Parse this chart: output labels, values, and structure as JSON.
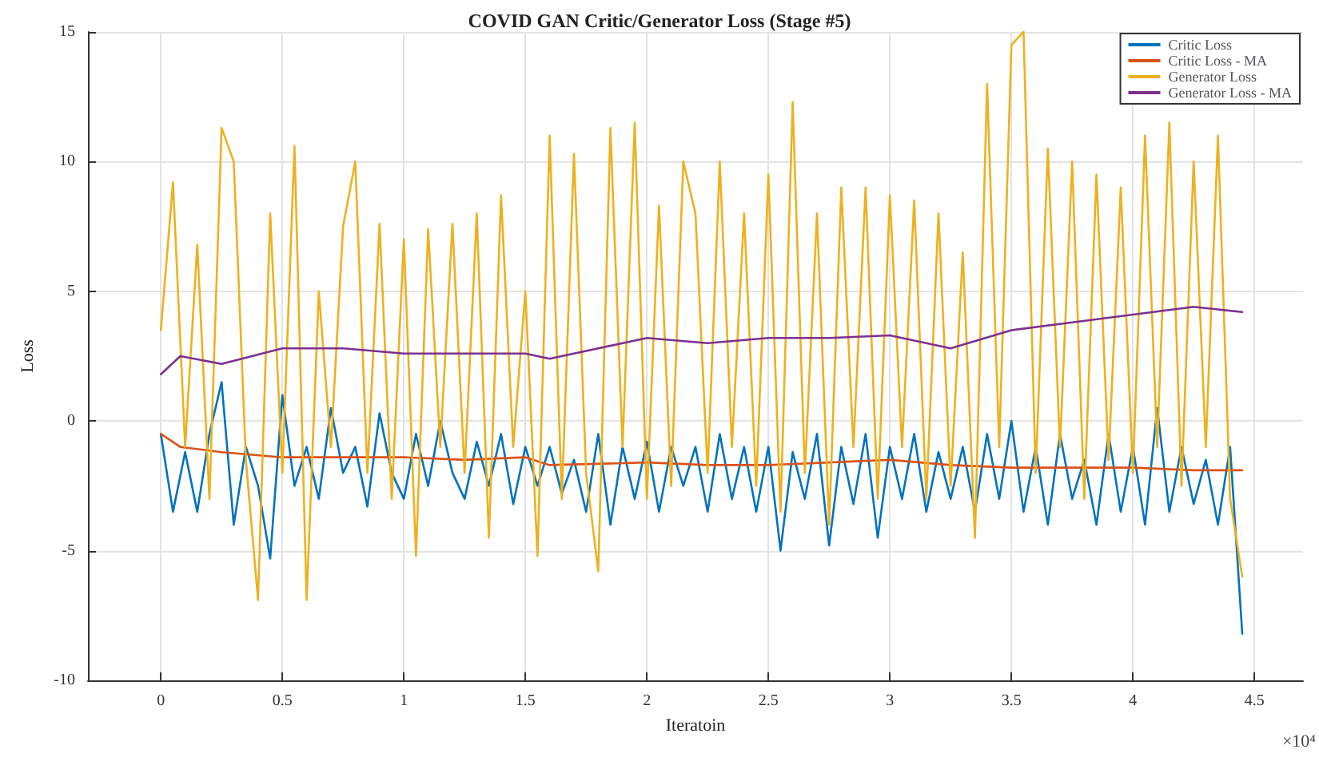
{
  "chart_data": {
    "type": "line",
    "title": "COVID GAN Critic/Generator Loss (Stage #5)",
    "xlabel": "Iteratoin",
    "ylabel": "Loss",
    "annotations": [
      "×10⁴"
    ],
    "x": [
      0,
      0.05,
      0.1,
      0.15,
      0.2,
      0.25,
      0.3,
      0.35,
      0.4,
      0.45,
      0.5,
      0.55,
      0.6,
      0.65,
      0.7,
      0.75,
      0.8,
      0.85,
      0.9,
      0.95,
      1,
      1.05,
      1.1,
      1.15,
      1.2,
      1.25,
      1.3,
      1.35,
      1.4,
      1.45,
      1.5,
      1.55,
      1.6,
      1.65,
      1.7,
      1.75,
      1.8,
      1.85,
      1.9,
      1.95,
      2,
      2.05,
      2.1,
      2.15,
      2.2,
      2.25,
      2.3,
      2.35,
      2.4,
      2.45,
      2.5,
      2.55,
      2.6,
      2.65,
      2.7,
      2.75,
      2.8,
      2.85,
      2.9,
      2.95,
      3,
      3.05,
      3.1,
      3.15,
      3.2,
      3.25,
      3.3,
      3.35,
      3.4,
      3.45,
      3.5,
      3.55,
      3.6,
      3.65,
      3.7,
      3.75,
      3.8,
      3.85,
      3.9,
      3.95,
      4,
      4.05,
      4.1,
      4.15,
      4.2,
      4.25,
      4.3,
      4.35,
      4.4,
      4.45
    ],
    "series": [
      {
        "name": "Critic Loss",
        "color": "#0072bd",
        "values": [
          -0.5,
          -3.5,
          -1.2,
          -3.5,
          -0.5,
          1.5,
          -4,
          -1,
          -2.5,
          -5.3,
          1,
          -2.5,
          -1,
          -3,
          0.5,
          -2,
          -1,
          -3.3,
          0.3,
          -2,
          -3,
          -0.5,
          -2.5,
          0,
          -2,
          -3,
          -0.8,
          -2.5,
          -0.5,
          -3.2,
          -1,
          -2.5,
          -1,
          -2.8,
          -1.5,
          -3.5,
          -0.5,
          -4,
          -1,
          -3,
          -0.8,
          -3.5,
          -1,
          -2.5,
          -1,
          -3.5,
          -0.5,
          -3,
          -1,
          -3.5,
          -1,
          -5,
          -1.2,
          -3,
          -0.5,
          -4.8,
          -1,
          -3.2,
          -0.5,
          -4.5,
          -1,
          -3,
          -0.5,
          -3.5,
          -1.2,
          -3,
          -1,
          -3.5,
          -0.5,
          -3,
          0,
          -3.5,
          -1,
          -4,
          -0.5,
          -3,
          -1.5,
          -4,
          -0.5,
          -3.5,
          -1,
          -4,
          0.5,
          -3.5,
          -1,
          -3.2,
          -1.5,
          -4,
          -1,
          -8.2
        ]
      },
      {
        "name": "Critic Loss - MA",
        "color": "#d95319",
        "x": [
          0,
          0.08,
          0.25,
          0.5,
          0.75,
          1,
          1.25,
          1.5,
          1.6,
          2,
          2.25,
          2.5,
          2.75,
          3,
          3.25,
          3.5,
          3.75,
          4,
          4.25,
          4.45
        ],
        "values": [
          -0.5,
          -1.0,
          -1.2,
          -1.4,
          -1.4,
          -1.4,
          -1.5,
          -1.4,
          -1.7,
          -1.6,
          -1.7,
          -1.7,
          -1.6,
          -1.5,
          -1.7,
          -1.8,
          -1.8,
          -1.8,
          -1.9,
          -1.9
        ]
      },
      {
        "name": "Generator Loss",
        "color": "#edb120",
        "values": [
          3.5,
          9.2,
          -1,
          6.8,
          -3,
          11.3,
          10,
          -1.5,
          -6.9,
          8,
          -2,
          10.6,
          -6.9,
          5,
          -1,
          7.5,
          10,
          -2,
          7.6,
          -3,
          7,
          -5.2,
          7.4,
          -1,
          7.6,
          -2,
          8,
          -4.5,
          8.7,
          -1,
          5,
          -5.2,
          11,
          -3,
          10.3,
          -2,
          -5.8,
          11.3,
          -1,
          11.5,
          -3,
          8.3,
          -2.5,
          10,
          8,
          -2,
          10,
          -1,
          8,
          -2.5,
          9.5,
          -3.5,
          12.3,
          -2,
          8,
          -4,
          9,
          -1,
          9,
          -3,
          8.7,
          -1,
          8.5,
          -3,
          8,
          -2.5,
          6.5,
          -4.5,
          13,
          -1,
          14.5,
          15,
          -2,
          10.5,
          -1,
          10,
          -3,
          9.5,
          -1.5,
          9,
          -2,
          11,
          -1,
          11.5,
          -2.5,
          10,
          -1,
          11,
          -3,
          -6
        ]
      },
      {
        "name": "Generator Loss - MA",
        "color": "#7e2f8e",
        "x": [
          0,
          0.08,
          0.25,
          0.5,
          0.75,
          1,
          1.25,
          1.5,
          1.6,
          2,
          2.25,
          2.5,
          2.75,
          3,
          3.25,
          3.5,
          3.75,
          4,
          4.25,
          4.45
        ],
        "values": [
          1.8,
          2.5,
          2.2,
          2.8,
          2.8,
          2.6,
          2.6,
          2.6,
          2.4,
          3.2,
          3.0,
          3.2,
          3.2,
          3.3,
          2.8,
          3.5,
          3.8,
          4.1,
          4.4,
          4.2
        ]
      }
    ],
    "xlim": [
      -0.3,
      4.7
    ],
    "xticks": [
      0,
      0.5,
      1,
      1.5,
      2,
      2.5,
      3,
      3.5,
      4,
      4.5
    ],
    "ylim": [
      -10,
      15
    ],
    "yticks": [
      -10,
      -5,
      0,
      5,
      10,
      15
    ],
    "grid": true,
    "legend": "top right",
    "marker": "none",
    "line_style": "solid"
  }
}
